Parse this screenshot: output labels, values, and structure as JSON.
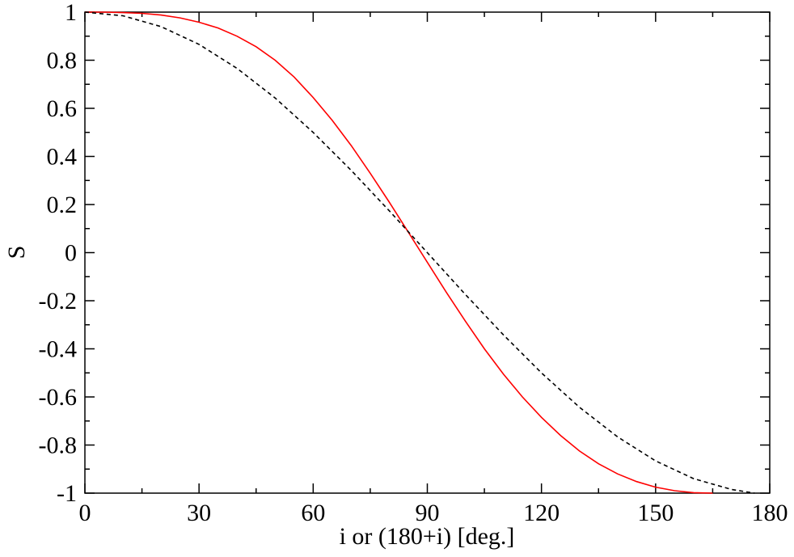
{
  "chart_data": {
    "type": "line",
    "title": "",
    "xlabel": "i or (180+i) [deg.]",
    "ylabel": "S",
    "xlim": [
      0,
      180
    ],
    "ylim": [
      -1,
      1
    ],
    "xticks": [
      0,
      30,
      60,
      90,
      120,
      150,
      180
    ],
    "xtick_labels": [
      "0",
      "30",
      "60",
      "90",
      "120",
      "150",
      "180"
    ],
    "yticks": [
      -1,
      -0.8,
      -0.6,
      -0.4,
      -0.2,
      0,
      0.2,
      0.4,
      0.6,
      0.8,
      1
    ],
    "ytick_labels": [
      "-1",
      "-0.8",
      "-0.6",
      "-0.4",
      "-0.2",
      "0",
      "0.2",
      "0.4",
      "0.6",
      "0.8",
      "1"
    ],
    "grid": false,
    "series": [
      {
        "color": "#ff0000",
        "style": "solid",
        "x": [
          0,
          5,
          10,
          15,
          20,
          25,
          30,
          35,
          40,
          45,
          50,
          55,
          60,
          65,
          70,
          75,
          80,
          85,
          90,
          95,
          100,
          105,
          110,
          115,
          120,
          125,
          130,
          135,
          140,
          145,
          150,
          155,
          160,
          165
        ],
        "y": [
          1.0,
          1.0,
          0.998,
          0.995,
          0.988,
          0.976,
          0.958,
          0.934,
          0.9,
          0.856,
          0.8,
          0.73,
          0.645,
          0.55,
          0.445,
          0.33,
          0.21,
          0.085,
          -0.04,
          -0.165,
          -0.285,
          -0.4,
          -0.505,
          -0.6,
          -0.685,
          -0.76,
          -0.825,
          -0.878,
          -0.92,
          -0.952,
          -0.975,
          -0.99,
          -0.998,
          -1.0
        ]
      },
      {
        "color": "#000000",
        "style": "dashed",
        "x": [
          0,
          10,
          20,
          30,
          40,
          50,
          60,
          70,
          80,
          90,
          100,
          110,
          120,
          130,
          140,
          150,
          160,
          170,
          176
        ],
        "y": [
          1.0,
          0.985,
          0.94,
          0.866,
          0.766,
          0.643,
          0.5,
          0.342,
          0.174,
          0.0,
          -0.174,
          -0.342,
          -0.5,
          -0.643,
          -0.766,
          -0.866,
          -0.94,
          -0.985,
          -1.0
        ]
      }
    ]
  }
}
